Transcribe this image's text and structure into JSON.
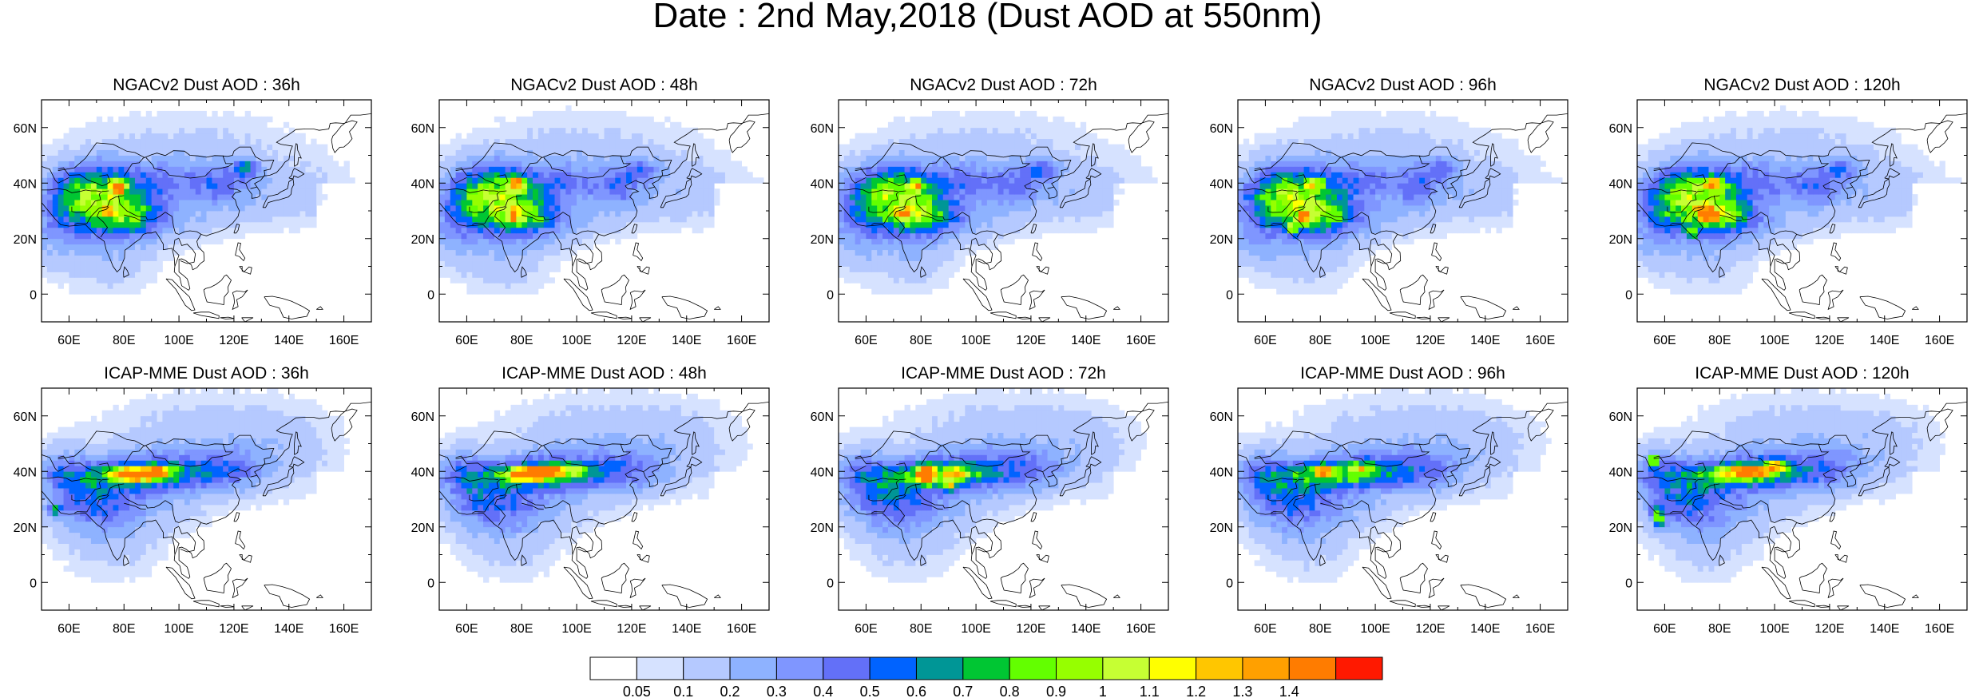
{
  "title": "Date : 2nd May,2018 (Dust AOD at 550nm)",
  "axes": {
    "lon_range": [
      50,
      170
    ],
    "lat_range": [
      -10,
      70
    ],
    "lon_ticks": [
      "60E",
      "80E",
      "100E",
      "120E",
      "140E",
      "160E"
    ],
    "lat_ticks": [
      "60N",
      "40N",
      "20N",
      "0"
    ]
  },
  "panels": [
    {
      "row": 0,
      "col": 0,
      "title": "NGACv2 Dust AOD : 36h",
      "model": "NGACv2",
      "lead_hours": 36
    },
    {
      "row": 0,
      "col": 1,
      "title": "NGACv2 Dust AOD : 48h",
      "model": "NGACv2",
      "lead_hours": 48
    },
    {
      "row": 0,
      "col": 2,
      "title": "NGACv2 Dust AOD : 72h",
      "model": "NGACv2",
      "lead_hours": 72
    },
    {
      "row": 0,
      "col": 3,
      "title": "NGACv2 Dust AOD : 96h",
      "model": "NGACv2",
      "lead_hours": 96
    },
    {
      "row": 0,
      "col": 4,
      "title": "NGACv2 Dust AOD : 120h",
      "model": "NGACv2",
      "lead_hours": 120
    },
    {
      "row": 1,
      "col": 0,
      "title": "ICAP-MME Dust AOD : 36h",
      "model": "ICAP-MME",
      "lead_hours": 36
    },
    {
      "row": 1,
      "col": 1,
      "title": "ICAP-MME Dust AOD : 48h",
      "model": "ICAP-MME",
      "lead_hours": 48
    },
    {
      "row": 1,
      "col": 2,
      "title": "ICAP-MME Dust AOD : 72h",
      "model": "ICAP-MME",
      "lead_hours": 72
    },
    {
      "row": 1,
      "col": 3,
      "title": "ICAP-MME Dust AOD : 96h",
      "model": "ICAP-MME",
      "lead_hours": 96
    },
    {
      "row": 1,
      "col": 4,
      "title": "ICAP-MME Dust AOD : 120h",
      "model": "ICAP-MME",
      "lead_hours": 120
    }
  ],
  "colorbar": {
    "labels": [
      "0.05",
      "0.1",
      "0.2",
      "0.3",
      "0.4",
      "0.5",
      "0.6",
      "0.7",
      "0.8",
      "0.9",
      "1",
      "1.1",
      "1.2",
      "1.3",
      "1.4"
    ],
    "colors": [
      "#ffffff",
      "#d6e2ff",
      "#b5c9ff",
      "#8eb2ff",
      "#7f96ff",
      "#6370f8",
      "#0063ff",
      "#009696",
      "#00c633",
      "#63ff00",
      "#96ff00",
      "#c6ff33",
      "#ffff00",
      "#ffc600",
      "#ffa000",
      "#ff7c00",
      "#ff1900"
    ]
  }
}
